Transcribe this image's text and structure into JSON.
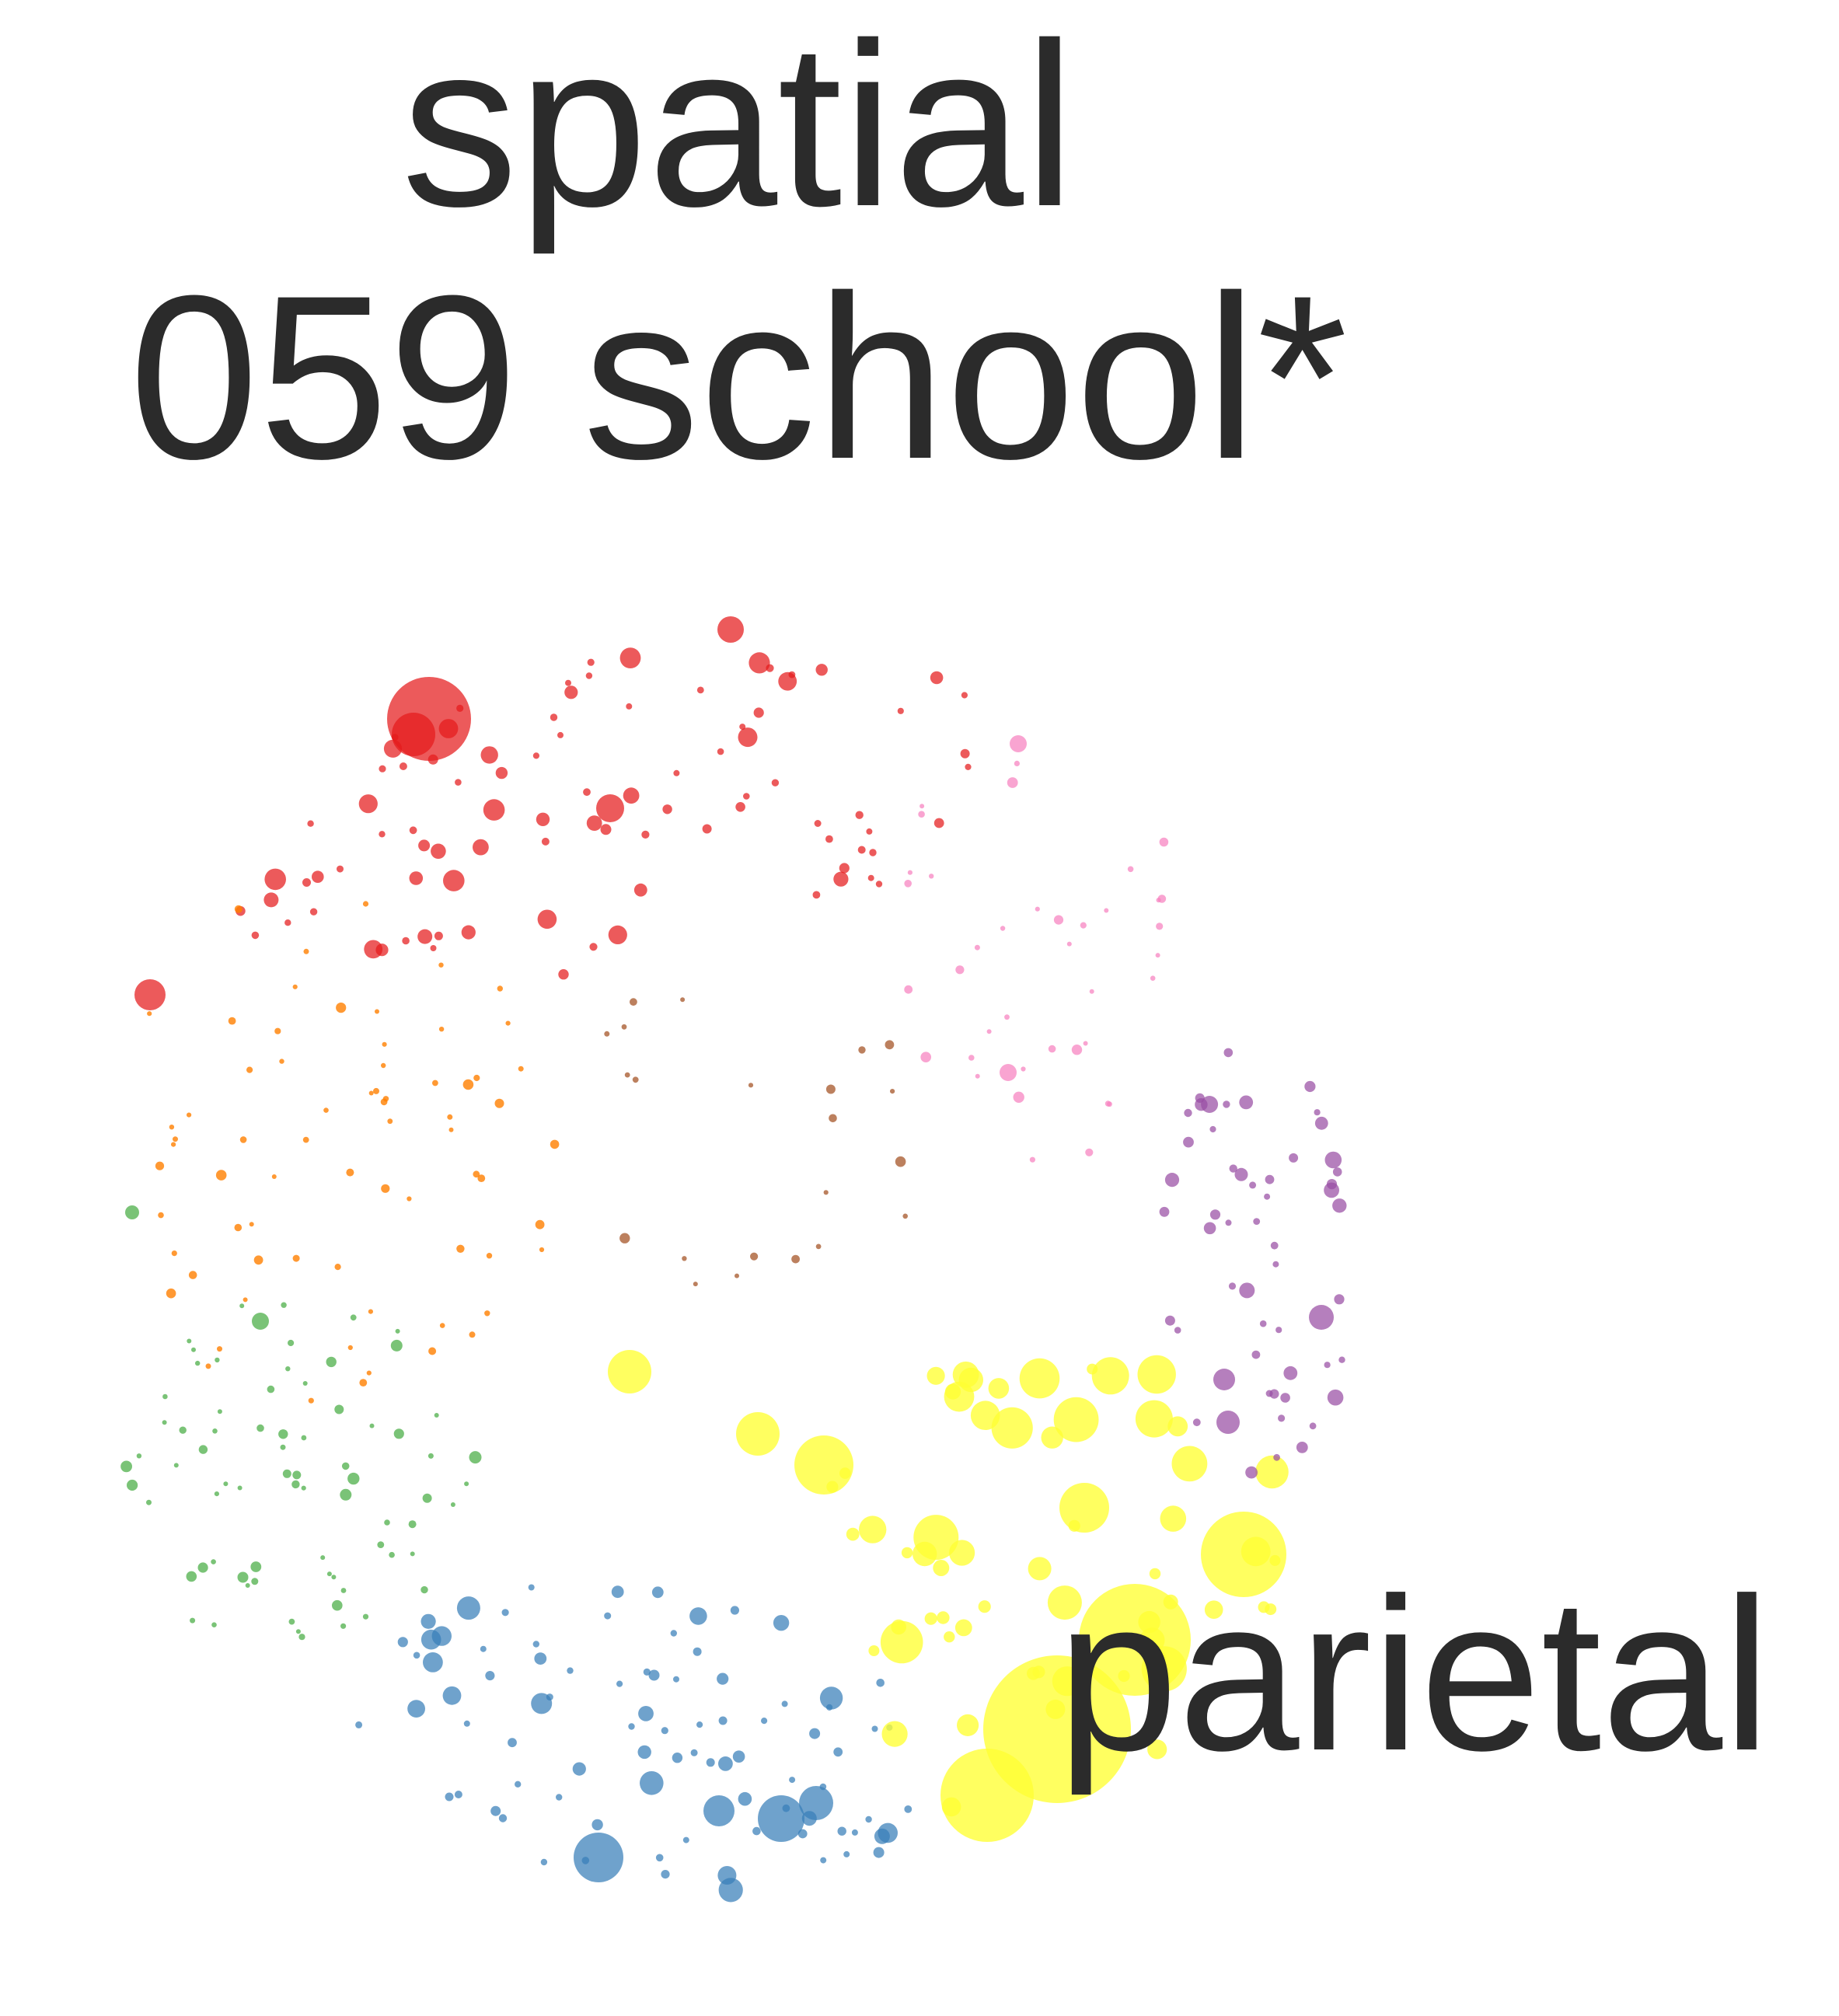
{
  "title_line_1": "spatial",
  "title_line_2": "059 school*",
  "highlight_label": "parietal",
  "colors": {
    "red": "#e41a1c",
    "orange": "#ff7f00",
    "green": "#4daf4a",
    "blue": "#377eb8",
    "yellow": "#ffff33",
    "purple": "#984ea3",
    "pink": "#f781bf",
    "brown": "#a65628",
    "text": "#2b2b2b"
  },
  "clusters": [
    {
      "name": "red",
      "color_key": "red",
      "highlighted": false,
      "node_count": 95
    },
    {
      "name": "orange",
      "color_key": "orange",
      "highlighted": false,
      "node_count": 70
    },
    {
      "name": "green",
      "color_key": "green",
      "highlighted": false,
      "node_count": 75
    },
    {
      "name": "blue",
      "color_key": "blue",
      "highlighted": false,
      "node_count": 90
    },
    {
      "name": "yellow",
      "color_key": "yellow",
      "highlighted": true,
      "node_count": 70
    },
    {
      "name": "purple",
      "color_key": "purple",
      "highlighted": false,
      "node_count": 55
    },
    {
      "name": "pink",
      "color_key": "pink",
      "highlighted": false,
      "node_count": 40
    },
    {
      "name": "brown",
      "color_key": "brown",
      "highlighted": false,
      "node_count": 22
    }
  ]
}
